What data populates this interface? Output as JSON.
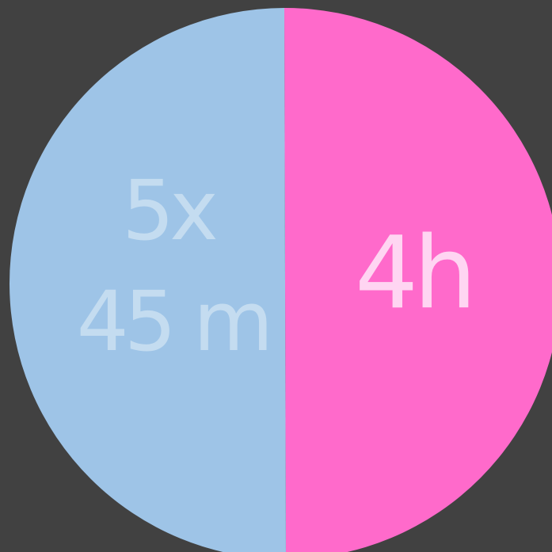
{
  "colors": {
    "background": "#414141",
    "left_segment": "#9ec4e7",
    "right_segment": "#ff6acb",
    "left_label": "#c4dcf0",
    "right_label": "#ffd5f2"
  },
  "left_segment": {
    "line1": "5x",
    "line2": "45 m"
  },
  "right_segment": {
    "label": "4h"
  }
}
